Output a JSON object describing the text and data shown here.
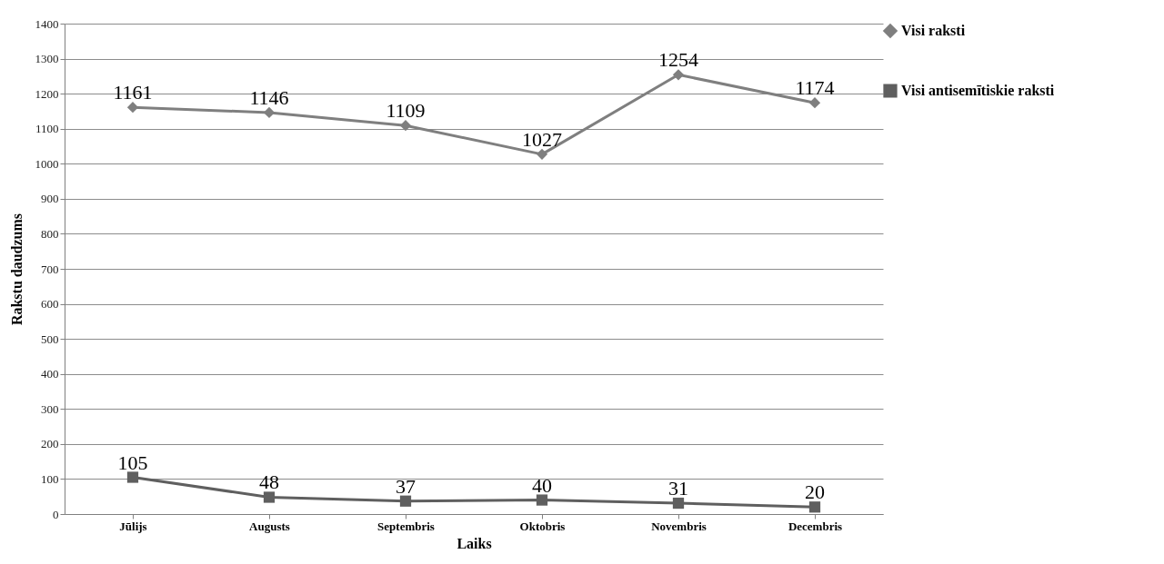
{
  "chart_data": {
    "type": "line",
    "xlabel": "Laiks",
    "ylabel": "Rakstu daudzums",
    "categories": [
      "Jūlijs",
      "Augusts",
      "Septembris",
      "Oktobris",
      "Novembris",
      "Decembris"
    ],
    "series": [
      {
        "name": "Visi raksti",
        "color": "#7f7f7f",
        "marker": "diamond",
        "values": [
          1161,
          1146,
          1109,
          1027,
          1254,
          1174
        ]
      },
      {
        "name": "Visi antisemītiskie raksti",
        "color": "#5f5f5f",
        "marker": "square",
        "values": [
          105,
          48,
          37,
          40,
          31,
          20
        ]
      }
    ],
    "ylim": [
      0,
      1400
    ],
    "yticks": [
      0,
      100,
      200,
      300,
      400,
      500,
      600,
      700,
      800,
      900,
      1000,
      1100,
      1200,
      1300,
      1400
    ],
    "grid": "y",
    "legend": "right",
    "data_labels": true
  }
}
